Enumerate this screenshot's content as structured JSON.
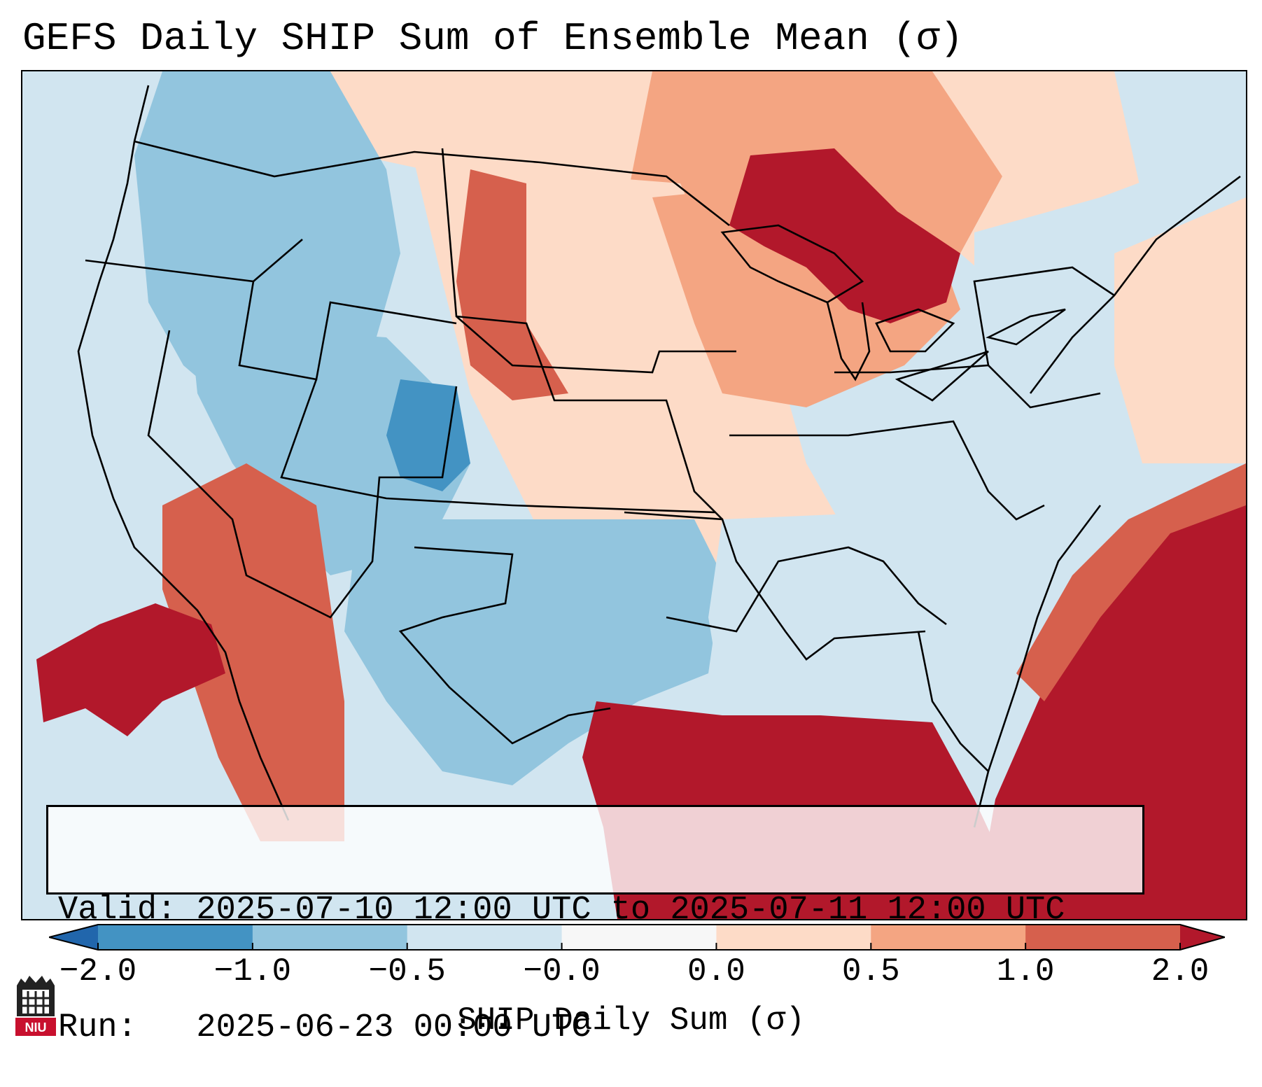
{
  "title": "GEFS Daily SHIP Sum of Ensemble Mean (σ)",
  "info": {
    "valid_line": "Valid: 2025-07-10 12:00 UTC to 2025-07-11 12:00 UTC",
    "run_line": "Run:   2025-06-23 00:00 UTC"
  },
  "colorbar": {
    "label": "SHIP Daily Sum (σ)",
    "extend": "both",
    "bins": [
      {
        "from": "-inf",
        "to": -2.0,
        "color": "#2166ac"
      },
      {
        "from": -2.0,
        "to": -1.0,
        "color": "#4393c3"
      },
      {
        "from": -1.0,
        "to": -0.5,
        "color": "#92c5de"
      },
      {
        "from": -0.5,
        "to": 0.0,
        "color": "#d1e5f0"
      },
      {
        "from": 0.0,
        "to": 0.0,
        "color": "#f7f7f7"
      },
      {
        "from": 0.0,
        "to": 0.5,
        "color": "#fddbc7"
      },
      {
        "from": 0.5,
        "to": 1.0,
        "color": "#f4a582"
      },
      {
        "from": 1.0,
        "to": 2.0,
        "color": "#d6604d"
      },
      {
        "from": 2.0,
        "to": "inf",
        "color": "#b2182b"
      }
    ],
    "ticks": [
      "−2.0",
      "−1.0",
      "−0.5",
      "−0.0",
      "0.0",
      "0.5",
      "1.0",
      "2.0"
    ]
  },
  "regions": {
    "pacific_ocean": "#d1e5f0",
    "northwest": "#92c5de",
    "great_basin": "#92c5de",
    "colorado": "#4393c3",
    "southwest_hot": "#d6604d",
    "pacific_anomaly": "#b2182b",
    "northern_plains": "#fddbc7",
    "dakotas_hot": "#d6604d",
    "great_lakes": "#b2182b",
    "upper_midwest": "#f4a582",
    "ontario": "#fddbc7",
    "texas": "#92c5de",
    "central_plains": "#fddbc7",
    "southeast": "#d1e5f0",
    "gulf_of_mexico": "#b2182b",
    "atlantic_ocean": "#b2182b",
    "northeast": "#d1e5f0",
    "canada_east": "#f4a582"
  },
  "logo": {
    "text": "NIU",
    "color": "#c8102e"
  }
}
